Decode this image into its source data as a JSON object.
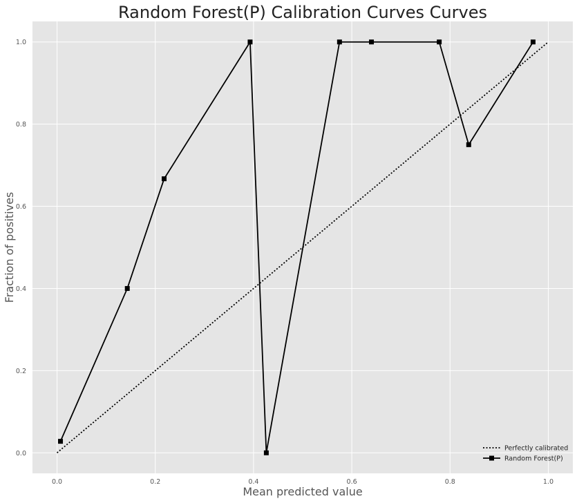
{
  "chart_data": {
    "type": "line",
    "title": "Random Forest(P) Calibration Curves Curves",
    "xlabel": "Mean predicted value",
    "ylabel": "Fraction of positives",
    "xlim": [
      -0.05,
      1.05
    ],
    "ylim": [
      -0.05,
      1.05
    ],
    "xticks": [
      "0.0",
      "0.2",
      "0.4",
      "0.6",
      "0.8",
      "1.0"
    ],
    "yticks": [
      "0.0",
      "0.2",
      "0.4",
      "0.6",
      "0.8",
      "1.0"
    ],
    "grid": true,
    "legend_position": "bottom-right",
    "series": [
      {
        "name": "Perfectly calibrated",
        "style": "dotted",
        "color": "#000000",
        "x": [
          0.0,
          1.0
        ],
        "y": [
          0.0,
          1.0
        ]
      },
      {
        "name": "Random Forest(P)",
        "style": "solid",
        "marker": "square",
        "color": "#000000",
        "x": [
          0.007,
          0.143,
          0.218,
          0.393,
          0.426,
          0.575,
          0.64,
          0.778,
          0.838,
          0.969
        ],
        "y": [
          0.028,
          0.4,
          0.667,
          1.0,
          0.0,
          1.0,
          1.0,
          1.0,
          0.75,
          1.0
        ]
      }
    ]
  },
  "colors": {
    "plot_background": "#e5e5e5",
    "grid": "#ffffff",
    "line": "#000000"
  }
}
